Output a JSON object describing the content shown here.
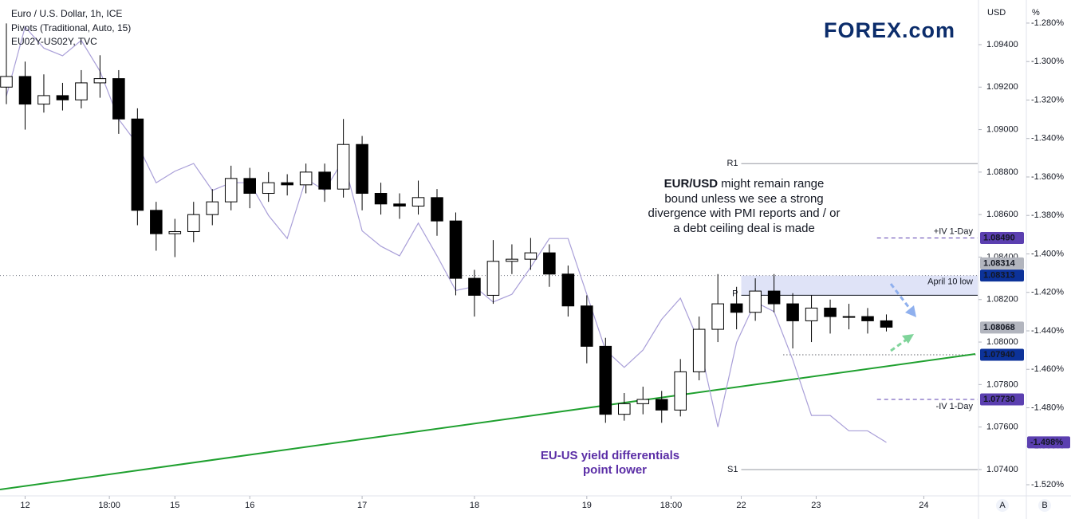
{
  "chart_data": {
    "type": "candlestick",
    "indicator": "Pivots (Traditional, Auto, 15)",
    "logo": "FOREX.com",
    "y_unit": "USD",
    "y2_unit": "%",
    "scale_buttons": [
      "A",
      "B"
    ],
    "annotation": {
      "bold": "EUR/USD",
      "lines": [
        "might remain range",
        "bound unless we see a strong",
        "divergence with PMI reports and / or",
        "a debt ceiling deal is made"
      ]
    },
    "yield_annotation": [
      "EU-US yield differentials",
      "point lower"
    ],
    "xlim": [
      0,
      207
    ],
    "xticks": [
      {
        "value": 4,
        "label": "12"
      },
      {
        "value": 22,
        "label": "18:00"
      },
      {
        "value": 36,
        "label": "15"
      },
      {
        "value": 52,
        "label": "16"
      },
      {
        "value": 76,
        "label": "17"
      },
      {
        "value": 100,
        "label": "18"
      },
      {
        "value": 124,
        "label": "19"
      },
      {
        "value": 142,
        "label": "18:00"
      },
      {
        "value": 157,
        "label": "22"
      },
      {
        "value": 173,
        "label": "23"
      },
      {
        "value": 196,
        "label": "24"
      }
    ],
    "ylim": [
      1.07276,
      1.0961
    ],
    "yticks": [
      {
        "value": 1.074,
        "label": "1.07400"
      },
      {
        "value": 1.076,
        "label": "1.07600"
      },
      {
        "value": 1.078,
        "label": "1.07800"
      },
      {
        "value": 1.08,
        "label": "1.08000"
      },
      {
        "value": 1.082,
        "label": "1.08200"
      },
      {
        "value": 1.084,
        "label": "1.08400"
      },
      {
        "value": 1.086,
        "label": "1.08600"
      },
      {
        "value": 1.088,
        "label": "1.08800"
      },
      {
        "value": 1.09,
        "label": "1.09000"
      },
      {
        "value": 1.092,
        "label": "1.09200"
      },
      {
        "value": 1.094,
        "label": "1.09400"
      }
    ],
    "y2lim": [
      -1.5258,
      -1.268
    ],
    "y2ticks": [
      {
        "value": -1.28,
        "label": "-1.280%"
      },
      {
        "value": -1.3,
        "label": "-1.300%"
      },
      {
        "value": -1.32,
        "label": "-1.320%"
      },
      {
        "value": -1.34,
        "label": "-1.340%"
      },
      {
        "value": -1.36,
        "label": "-1.360%"
      },
      {
        "value": -1.38,
        "label": "-1.380%"
      },
      {
        "value": -1.4,
        "label": "-1.400%"
      },
      {
        "value": -1.42,
        "label": "-1.420%"
      },
      {
        "value": -1.44,
        "label": "-1.440%"
      },
      {
        "value": -1.46,
        "label": "-1.460%"
      },
      {
        "value": -1.48,
        "label": "-1.480%"
      },
      {
        "value": -1.5,
        "label": "-1.500%"
      },
      {
        "value": -1.52,
        "label": "-1.520%"
      }
    ],
    "grid": false,
    "series": [
      {
        "name": "Euro / U.S. Dollar, 1h, ICE",
        "type": "candlestick",
        "up_color": "#ffffff",
        "down_color": "#000000",
        "outline": "#000000",
        "x": [
          0,
          4,
          8,
          12,
          16,
          20,
          24,
          28,
          32,
          36,
          40,
          44,
          48,
          52,
          56,
          60,
          64,
          68,
          72,
          76,
          80,
          84,
          88,
          92,
          96,
          100,
          104,
          108,
          112,
          116,
          120,
          124,
          128,
          132,
          136,
          140,
          144,
          148,
          152,
          156,
          160,
          164,
          168,
          172,
          176,
          180,
          184,
          188
        ],
        "open": [
          1.092,
          1.0925,
          1.0912,
          1.0916,
          1.0914,
          1.0922,
          1.0924,
          1.0905,
          1.0862,
          1.0851,
          1.0852,
          1.086,
          1.0866,
          1.0877,
          1.087,
          1.0875,
          1.0874,
          1.088,
          1.0872,
          1.0893,
          1.087,
          1.0865,
          1.0864,
          1.0868,
          1.0857,
          1.083,
          1.0822,
          1.0838,
          1.0839,
          1.0842,
          1.0832,
          1.0817,
          1.0798,
          1.0766,
          1.0771,
          1.0773,
          1.0768,
          1.0786,
          1.0806,
          1.0818,
          1.0814,
          1.0824,
          1.0818,
          1.081,
          1.0816,
          1.0812,
          1.0812,
          1.081
        ],
        "high": [
          1.095,
          1.0932,
          1.0926,
          1.0922,
          1.0928,
          1.0935,
          1.0928,
          1.091,
          1.0866,
          1.0858,
          1.0866,
          1.0872,
          1.0883,
          1.0882,
          1.088,
          1.0879,
          1.0884,
          1.0884,
          1.0905,
          1.0897,
          1.0875,
          1.087,
          1.0876,
          1.0872,
          1.0861,
          1.0834,
          1.0848,
          1.0846,
          1.0849,
          1.0846,
          1.0836,
          1.0822,
          1.0802,
          1.0776,
          1.0779,
          1.0777,
          1.0792,
          1.0812,
          1.0832,
          1.0826,
          1.083,
          1.0832,
          1.0823,
          1.0822,
          1.082,
          1.0818,
          1.0816,
          1.0813
        ],
        "low": [
          1.0912,
          1.09,
          1.0908,
          1.0909,
          1.091,
          1.0915,
          1.0898,
          1.0855,
          1.0843,
          1.084,
          1.0847,
          1.0855,
          1.0862,
          1.0863,
          1.0866,
          1.0869,
          1.087,
          1.0866,
          1.0868,
          1.0862,
          1.086,
          1.0858,
          1.086,
          1.085,
          1.0822,
          1.0812,
          1.0818,
          1.0832,
          1.0834,
          1.0826,
          1.0812,
          1.079,
          1.0762,
          1.0763,
          1.0766,
          1.0762,
          1.0765,
          1.0782,
          1.08,
          1.0806,
          1.081,
          1.0814,
          1.0797,
          1.08,
          1.0804,
          1.0806,
          1.0804,
          1.0805
        ],
        "close": [
          1.0925,
          1.0912,
          1.0916,
          1.0914,
          1.0922,
          1.0924,
          1.0905,
          1.0862,
          1.0851,
          1.0852,
          1.086,
          1.0866,
          1.0877,
          1.087,
          1.0875,
          1.0874,
          1.088,
          1.0872,
          1.0893,
          1.087,
          1.0865,
          1.0864,
          1.0868,
          1.0857,
          1.083,
          1.0822,
          1.0838,
          1.0839,
          1.0842,
          1.0832,
          1.0817,
          1.0798,
          1.0766,
          1.0771,
          1.0773,
          1.0768,
          1.0786,
          1.0806,
          1.0818,
          1.0814,
          1.0824,
          1.0818,
          1.081,
          1.0816,
          1.0812,
          1.0812,
          1.081,
          1.0807
        ]
      },
      {
        "name": "EU02Y-US02Y, TVC",
        "type": "line",
        "axis": "y2",
        "color": "#a99fd8",
        "x": [
          0,
          4,
          8,
          12,
          16,
          20,
          24,
          28,
          32,
          36,
          40,
          44,
          48,
          52,
          56,
          60,
          64,
          68,
          72,
          76,
          80,
          84,
          88,
          92,
          96,
          100,
          104,
          108,
          112,
          116,
          120,
          124,
          128,
          132,
          136,
          140,
          144,
          148,
          152,
          156,
          160,
          164,
          168,
          172,
          176,
          180,
          184,
          188
        ],
        "values": [
          -1.318,
          -1.282,
          -1.293,
          -1.297,
          -1.289,
          -1.305,
          -1.33,
          -1.343,
          -1.363,
          -1.357,
          -1.353,
          -1.367,
          -1.363,
          -1.363,
          -1.38,
          -1.392,
          -1.361,
          -1.367,
          -1.351,
          -1.388,
          -1.396,
          -1.401,
          -1.384,
          -1.401,
          -1.419,
          -1.417,
          -1.425,
          -1.421,
          -1.407,
          -1.392,
          -1.392,
          -1.421,
          -1.45,
          -1.459,
          -1.45,
          -1.434,
          -1.423,
          -1.446,
          -1.49,
          -1.446,
          -1.425,
          -1.43,
          -1.455,
          -1.484,
          -1.484,
          -1.492,
          -1.492,
          -1.498
        ]
      }
    ],
    "trendline": {
      "color": "#1fa02f",
      "x": [
        0,
        207
      ],
      "values": [
        1.07306,
        1.07944
      ]
    },
    "zone": {
      "name": "April 10 low",
      "from": 1.0822,
      "to": 1.08313,
      "x": [
        157,
        207
      ],
      "color": "#dfe3f7"
    },
    "levels": [
      {
        "name": "R1",
        "value": 1.0884,
        "x": [
          157,
          207
        ],
        "color": "#9598a1",
        "style": "solid"
      },
      {
        "name": "P",
        "value": 1.0822,
        "x": [
          157,
          207
        ],
        "color": "#131722",
        "style": "solid"
      },
      {
        "name": "S1",
        "value": 1.074,
        "x": [
          157,
          207
        ],
        "color": "#9598a1",
        "style": "solid"
      },
      {
        "name": "+IV 1-Day",
        "value": 1.0849,
        "x": [
          186,
          207
        ],
        "color": "#5b3fb0",
        "style": "dashed"
      },
      {
        "name": "-IV 1-Day",
        "value": 1.0773,
        "x": [
          186,
          207
        ],
        "color": "#5b3fb0",
        "style": "dashed"
      },
      {
        "value": 1.08313,
        "x": [
          0,
          207
        ],
        "color": "#787b86",
        "style": "dotted"
      },
      {
        "value": 1.0794,
        "x": [
          166,
          207
        ],
        "color": "#131722",
        "style": "dotted"
      }
    ],
    "price_labels": [
      {
        "value": 1.0849,
        "label": "1.08490",
        "color": "#5b3fb0",
        "text_color": "#ffffff"
      },
      {
        "value": 1.08313,
        "label": "1.08313",
        "color": "#0c3299",
        "text_color": "#ffffff"
      },
      {
        "value": 1.08314,
        "label": "1.08314",
        "color": "#b2b5be",
        "text_color": "#131722"
      },
      {
        "value": 1.08068,
        "label": "1.08068",
        "color": "#b2b5be",
        "text_color": "#131722"
      },
      {
        "value": 1.0794,
        "label": "1.07940",
        "color": "#0c3299",
        "text_color": "#ffffff"
      },
      {
        "value": 1.0773,
        "label": "1.07730",
        "color": "#5b3fb0",
        "text_color": "#ffffff"
      }
    ],
    "y2_labels": [
      {
        "value": -1.498,
        "label": "-1.498%",
        "color": "#5b3fb0",
        "text_color": "#ffffff"
      }
    ]
  }
}
